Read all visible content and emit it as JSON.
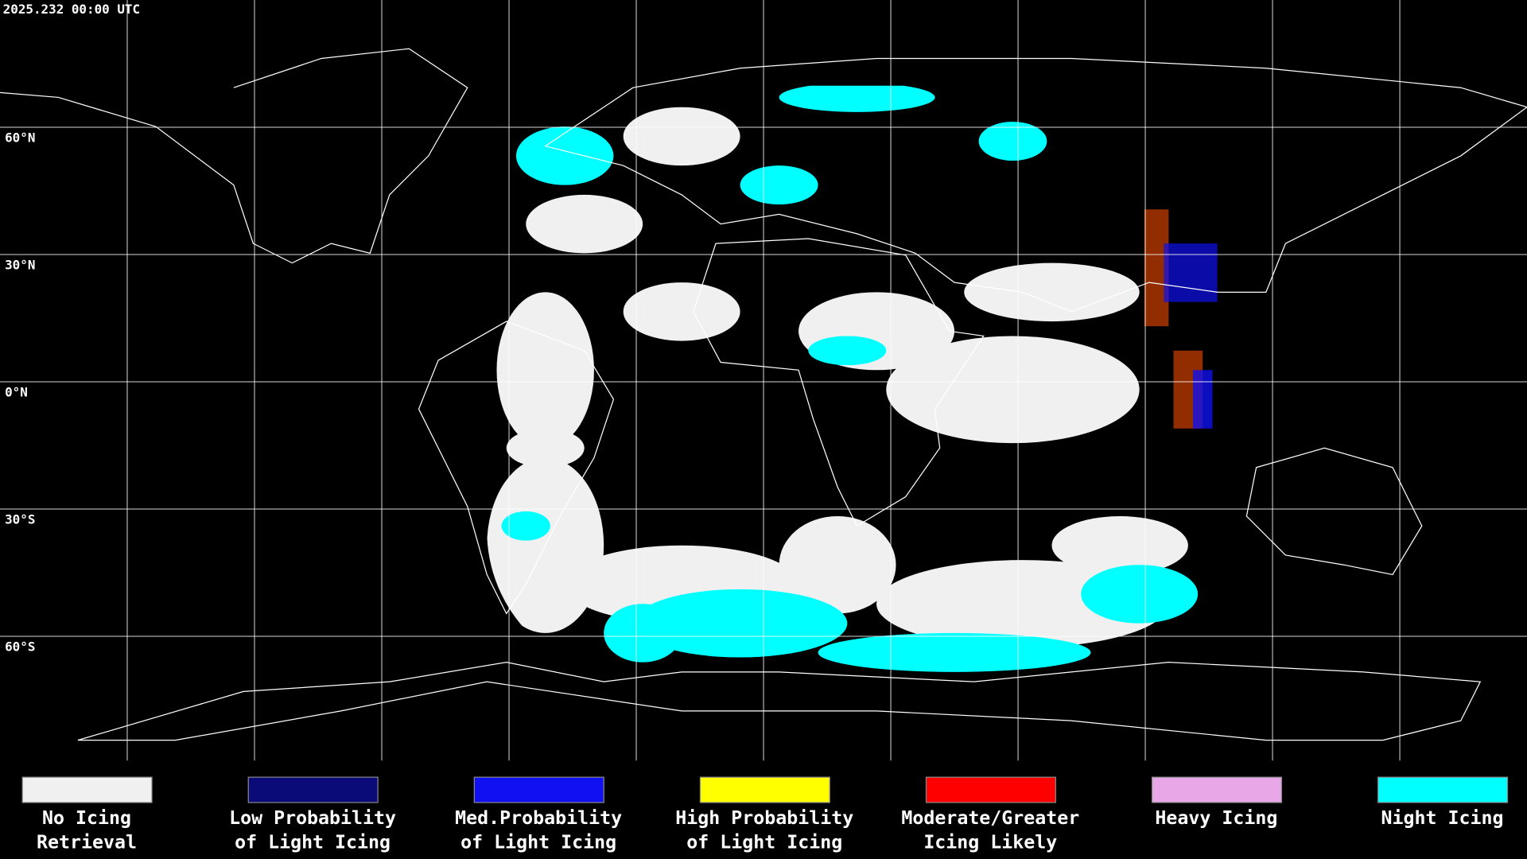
{
  "timestamp": "2025.232 00:00 UTC",
  "latitude_labels": [
    "60°N",
    "30°N",
    "0°N",
    "30°S",
    "60°S"
  ],
  "legend": [
    {
      "color": "#f0f0f0",
      "label": [
        "No Icing",
        "Retrieval"
      ]
    },
    {
      "color": "#0a0a78",
      "label": [
        "Low Probability",
        "of Light Icing"
      ]
    },
    {
      "color": "#1010f0",
      "label": [
        "Med.Probability",
        "of Light Icing"
      ]
    },
    {
      "color": "#ffff00",
      "label": [
        "High Probability",
        "of Light Icing"
      ]
    },
    {
      "color": "#ff0000",
      "label": [
        "Moderate/Greater",
        "Icing Likely"
      ]
    },
    {
      "color": "#e8a8e8",
      "label": [
        "Heavy Icing"
      ]
    },
    {
      "color": "#00ffff",
      "label": [
        "Night Icing"
      ]
    }
  ]
}
